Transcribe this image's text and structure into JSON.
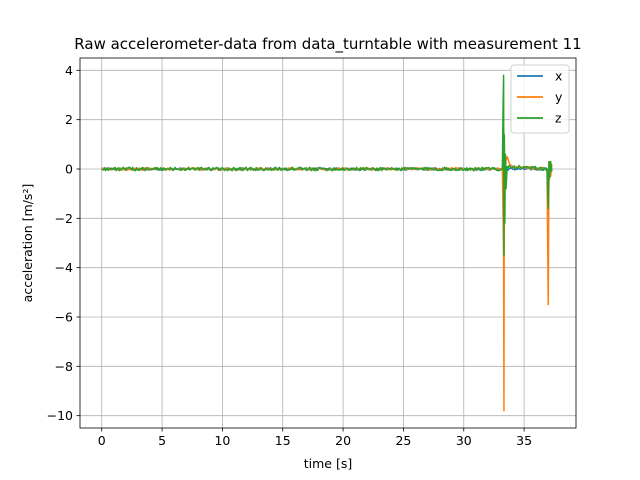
{
  "chart_data": {
    "type": "line",
    "title": "Raw accelerometer-data from data_turntable with measurement 11",
    "xlabel": "time [s]",
    "ylabel": "acceleration [m/s²]",
    "xlim": [
      -1.8,
      39.3
    ],
    "ylim": [
      -10.5,
      4.5
    ],
    "xticks": [
      0,
      5,
      10,
      15,
      20,
      25,
      30,
      35
    ],
    "yticks": [
      -10,
      -8,
      -6,
      -4,
      -2,
      0,
      2,
      4
    ],
    "grid": true,
    "legend_position": "top-right",
    "series": [
      {
        "name": "x",
        "color": "#1f77b4",
        "noise_amplitude": 0.05,
        "points": [
          [
            0.0,
            0.0
          ],
          [
            33.2,
            0.0
          ],
          [
            33.3,
            0.8
          ],
          [
            33.35,
            -1.2
          ],
          [
            33.4,
            0.4
          ],
          [
            33.5,
            0.0
          ],
          [
            36.9,
            0.0
          ],
          [
            37.0,
            -0.6
          ],
          [
            37.1,
            0.2
          ],
          [
            37.3,
            0.0
          ]
        ]
      },
      {
        "name": "y",
        "color": "#ff7f0e",
        "noise_amplitude": 0.05,
        "points": [
          [
            0.0,
            0.0
          ],
          [
            33.2,
            0.0
          ],
          [
            33.3,
            -3.5
          ],
          [
            33.33,
            -9.8
          ],
          [
            33.36,
            1.0
          ],
          [
            33.4,
            -0.5
          ],
          [
            33.5,
            0.35
          ],
          [
            33.6,
            0.5
          ],
          [
            33.8,
            0.2
          ],
          [
            34.0,
            0.1
          ],
          [
            36.9,
            0.0
          ],
          [
            37.0,
            -5.5
          ],
          [
            37.05,
            -0.8
          ],
          [
            37.1,
            0.3
          ],
          [
            37.2,
            -0.3
          ],
          [
            37.3,
            0.2
          ]
        ]
      },
      {
        "name": "z",
        "color": "#2ca02c",
        "noise_amplitude": 0.07,
        "points": [
          [
            0.0,
            0.0
          ],
          [
            33.2,
            0.0
          ],
          [
            33.25,
            2.2
          ],
          [
            33.3,
            3.8
          ],
          [
            33.33,
            -3.5
          ],
          [
            33.36,
            1.4
          ],
          [
            33.4,
            -2.2
          ],
          [
            33.45,
            0.6
          ],
          [
            33.5,
            -0.8
          ],
          [
            33.6,
            0.1
          ],
          [
            36.9,
            0.0
          ],
          [
            37.0,
            -1.6
          ],
          [
            37.05,
            0.3
          ],
          [
            37.1,
            -0.4
          ],
          [
            37.2,
            0.3
          ],
          [
            37.3,
            -0.1
          ]
        ]
      }
    ]
  }
}
